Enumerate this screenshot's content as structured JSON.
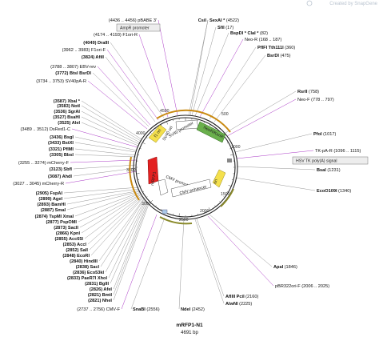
{
  "branding": {
    "text": "Created by SnapGene"
  },
  "plasmid": {
    "name": "mRFP1-N1",
    "length": "4691 bp"
  },
  "ticks": [
    "500",
    "1000",
    "1500",
    "2000",
    "2500",
    "3000",
    "3500",
    "4000",
    "4500"
  ],
  "features": [
    {
      "id": "f1-ori",
      "label": "f1 ori"
    },
    {
      "id": "sv40-promoter",
      "label": "SV40 promoter"
    },
    {
      "id": "neor-kanr",
      "label": "NeoR/KanR"
    },
    {
      "id": "sv40-ori",
      "label": "SV40 ori"
    },
    {
      "id": "cmv-promoter",
      "label": "CMV promoter"
    },
    {
      "id": "cmv-enhancer",
      "label": "CMV enhancer"
    },
    {
      "id": "mrfp1",
      "label": "mRFP1"
    },
    {
      "id": "ori",
      "label": "ori"
    },
    {
      "id": "hsv-tk-polya-box",
      "label": "HSV TK poly(A) signal"
    },
    {
      "id": "ampr-promoter-box",
      "label": "AmpR promoter"
    }
  ],
  "labels": [
    {
      "id": "l1",
      "text": "(4436 .. 4456)  pBABE 3'",
      "color": "#a020c0"
    },
    {
      "id": "l2",
      "text": "CsiI",
      "pos": "",
      "bold": true
    },
    {
      "id": "l3",
      "text": "SexAI *",
      "pos": "(4522)",
      "bold": true
    },
    {
      "id": "l4",
      "text": "(4174 .. 4193)  F1ori-R",
      "color": "#a020c0"
    },
    {
      "id": "l5",
      "text": "SfiI",
      "pos": "(17)",
      "bold": true
    },
    {
      "id": "l6",
      "text": "BspDI *  ClaI *",
      "pos": "(82)",
      "bold": true
    },
    {
      "id": "l7",
      "text": "(4049)  DraIII",
      "bold": true
    },
    {
      "id": "l8",
      "text": "Neo-R",
      "pos": "(168 .. 187)",
      "color": "#a020c0"
    },
    {
      "id": "l9",
      "text": "(3962 .. 3983)  F1ori-F",
      "color": "#a020c0"
    },
    {
      "id": "l10",
      "text": "PflFI  Tth111I",
      "pos": "(360)",
      "bold": true
    },
    {
      "id": "l11",
      "text": "(3824)  AfiII",
      "bold": true
    },
    {
      "id": "l12",
      "text": "BsrDI",
      "pos": "(475)",
      "bold": true
    },
    {
      "id": "l13",
      "text": "(3788 .. 3807)  EBV-rev",
      "color": "#a020c0"
    },
    {
      "id": "l14",
      "text": "(3772)  BtsI  BsrDI",
      "bold": true
    },
    {
      "id": "l15",
      "text": "(3734 .. 3753)  SV40pA-R",
      "color": "#a020c0"
    },
    {
      "id": "l16",
      "text": "RsrII",
      "pos": "(758)",
      "bold": true
    },
    {
      "id": "l17",
      "text": "Neo-F",
      "pos": "(778 .. 797)",
      "color": "#a020c0"
    },
    {
      "id": "l18",
      "text": "(3587)  XbaI *",
      "bold": true
    },
    {
      "id": "l19",
      "text": "(3583)  NotI",
      "bold": true
    },
    {
      "id": "l20",
      "text": "(3536)  SgrAI",
      "bold": true
    },
    {
      "id": "l21",
      "text": "(3527)  BsaHI",
      "bold": true
    },
    {
      "id": "l22",
      "text": "(3525)  AleI",
      "bold": true
    },
    {
      "id": "l23",
      "text": "(3489 .. 3512)  DsRed1-C",
      "color": "#a020c0"
    },
    {
      "id": "l24",
      "text": "PfoI",
      "pos": "(1017)",
      "bold": true
    },
    {
      "id": "l25",
      "text": "(3436)  BsgI",
      "bold": true
    },
    {
      "id": "l26",
      "text": "(3433)  BstXI",
      "bold": true
    },
    {
      "id": "l27",
      "text": "TK-pA-R",
      "pos": "(1096 .. 1115)",
      "color": "#a020c0"
    },
    {
      "id": "l28",
      "text": "(3321)  PflMI",
      "bold": true
    },
    {
      "id": "l29",
      "text": "(3305)  BbsI",
      "bold": true
    },
    {
      "id": "l30",
      "text": "(3255 .. 3274)  mCherry-F",
      "color": "#a020c0"
    },
    {
      "id": "l31",
      "text": "BsaI",
      "pos": "(1231)",
      "bold": true
    },
    {
      "id": "l32",
      "text": "(3123)  SbfI",
      "bold": true
    },
    {
      "id": "l33",
      "text": "(3087)  AhdI",
      "bold": true
    },
    {
      "id": "l34",
      "text": "(3027 .. 3045)  mCherry-R",
      "color": "#a020c0"
    },
    {
      "id": "l35",
      "text": "EcoO109I",
      "pos": "(1340)",
      "bold": true
    },
    {
      "id": "l36",
      "text": "(2905)  FspAI",
      "bold": true
    },
    {
      "id": "l37",
      "text": "(2899)  AgeI",
      "bold": true
    },
    {
      "id": "l38",
      "text": "(2893)  BamHI",
      "bold": true
    },
    {
      "id": "l39",
      "text": "(2887)  SmaI",
      "bold": true
    },
    {
      "id": "l40",
      "text": "(2874)  TspMI  XmaI",
      "bold": true
    },
    {
      "id": "l41",
      "text": "(2877)  PspOMI",
      "bold": true
    },
    {
      "id": "l42",
      "text": "(2873)  SacII",
      "bold": true
    },
    {
      "id": "l43",
      "text": "(2866)  KpnI",
      "bold": true
    },
    {
      "id": "l44",
      "text": "(2855)  Acc65I",
      "bold": true
    },
    {
      "id": "l45",
      "text": "(2853)  AccI",
      "bold": true
    },
    {
      "id": "l46",
      "text": "(2852)  SalI",
      "bold": true
    },
    {
      "id": "l47",
      "text": "(2848)  EcoRI",
      "bold": true
    },
    {
      "id": "l48",
      "text": "(2840)  HindIII",
      "bold": true
    },
    {
      "id": "l49",
      "text": "(2838)  SacI",
      "bold": true
    },
    {
      "id": "l50",
      "text": "(2836)  Eco53kI",
      "bold": true
    },
    {
      "id": "l51",
      "text": "(2833)  PaeR7I  XhoI",
      "bold": true
    },
    {
      "id": "l52",
      "text": "(2831)  BglII",
      "bold": true
    },
    {
      "id": "l53",
      "text": "(2826)  AfeI",
      "bold": true
    },
    {
      "id": "l54",
      "text": "(2821)  BmtI",
      "bold": true
    },
    {
      "id": "l55",
      "text": "(2821)  NheI",
      "bold": true
    },
    {
      "id": "l56",
      "text": "ApaI",
      "pos": "(1846)",
      "bold": true
    },
    {
      "id": "l57",
      "text": "(2737 .. 2756)  CMV-F",
      "color": "#a020c0"
    },
    {
      "id": "l58",
      "text": "pBR322ori-F",
      "pos": "(2006 .. 2025)",
      "color": "#a020c0"
    },
    {
      "id": "l59",
      "text": "SnaBI",
      "pos": "(2556)",
      "bold": true
    },
    {
      "id": "l60",
      "text": "NdeI",
      "pos": "(2452)",
      "bold": true
    },
    {
      "id": "l61",
      "text": "AflIII  PciI",
      "pos": "(2160)",
      "bold": true
    },
    {
      "id": "l62",
      "text": "AlwNI",
      "pos": "(2225)",
      "bold": true
    }
  ]
}
